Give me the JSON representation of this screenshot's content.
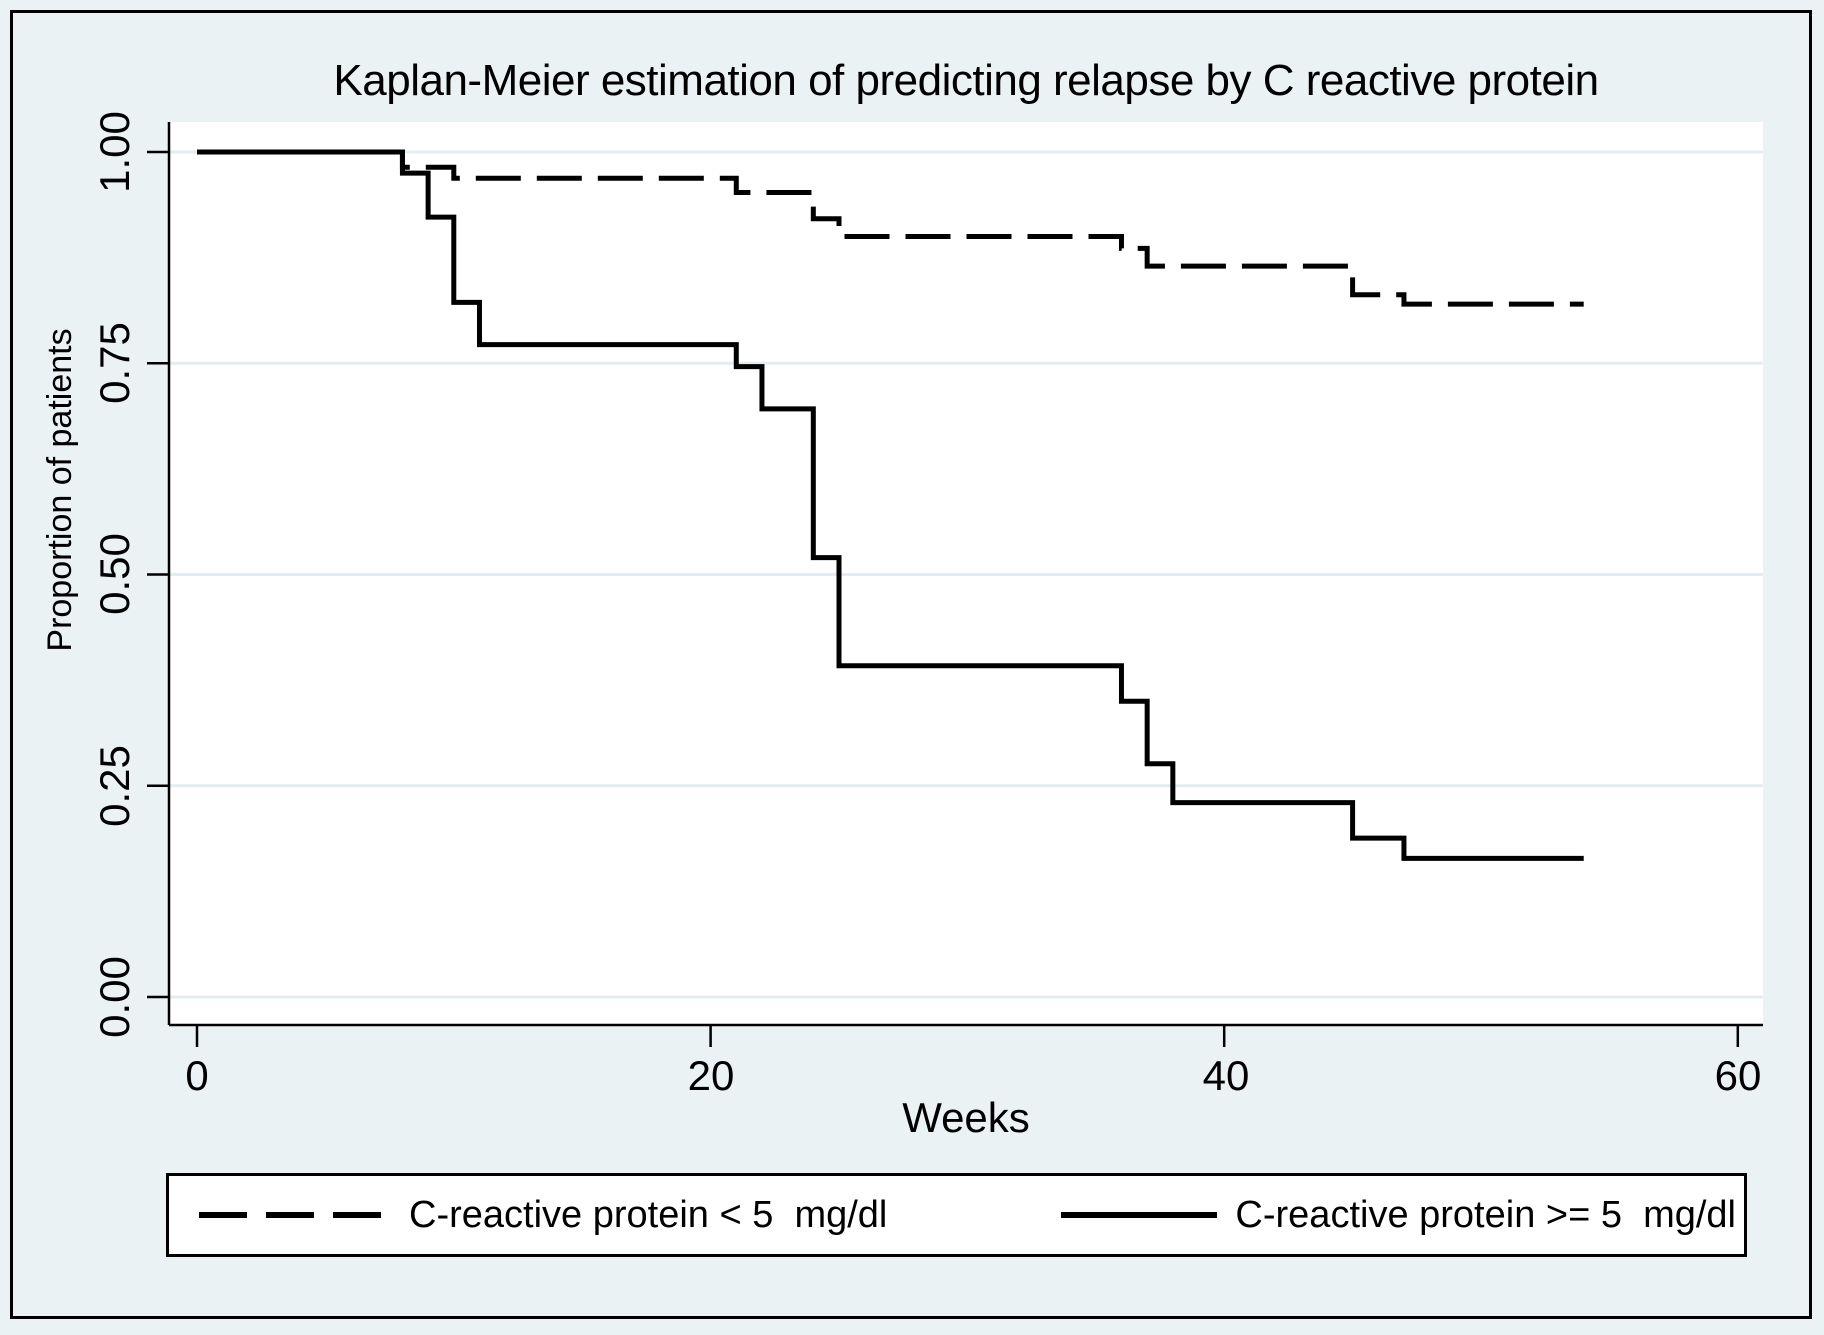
{
  "figure": {
    "background_color": "#eaf2f3",
    "plot_background": "#ffffff",
    "grid_color": "#e3edf1",
    "line_color": "#000000"
  },
  "chart_data": {
    "type": "line",
    "subtype": "kaplan-meier-step",
    "title": "Kaplan-Meier estimation of predicting relapse by C reactive protein",
    "xlabel": "Weeks",
    "ylabel": "Proportion of patients",
    "xlim": [
      0,
      61
    ],
    "ylim": [
      0,
      1.04
    ],
    "grid": "horizontal-only",
    "legend_position": "bottom",
    "x_axis": {
      "label": "Weeks",
      "ticks": [
        {
          "label": "0",
          "value": 0
        },
        {
          "label": "20",
          "value": 20
        },
        {
          "label": "40",
          "value": 40
        },
        {
          "label": "60",
          "value": 60
        }
      ]
    },
    "y_axis": {
      "label": "Proportion of patients",
      "ticks": [
        {
          "label": "1.00",
          "value": 1.0
        },
        {
          "label": "0.75",
          "value": 0.75
        },
        {
          "label": "0.50",
          "value": 0.5
        },
        {
          "label": "0.25",
          "value": 0.25
        },
        {
          "label": "0.00",
          "value": 0.0
        }
      ]
    },
    "series": [
      {
        "name": "C-reactive protein < 5  mg/dl",
        "style": "dashed",
        "data_name": "series-crp-lt5-line",
        "start_week": 0,
        "start_value": 1.0,
        "steps": [
          [
            8,
            0.982
          ],
          [
            10,
            0.969
          ],
          [
            21,
            0.952
          ],
          [
            24,
            0.921
          ],
          [
            25,
            0.9
          ],
          [
            36,
            0.886
          ],
          [
            37,
            0.865
          ],
          [
            45,
            0.831
          ],
          [
            47,
            0.82
          ]
        ],
        "end_week": 54
      },
      {
        "name": "C-reactive protein >= 5  mg/dl",
        "style": "solid",
        "data_name": "series-crp-ge5-line",
        "start_week": 0,
        "start_value": 1.0,
        "steps": [
          [
            8,
            0.975
          ],
          [
            9,
            0.923
          ],
          [
            10,
            0.822
          ],
          [
            11,
            0.772
          ],
          [
            21,
            0.746
          ],
          [
            22,
            0.696
          ],
          [
            24,
            0.52
          ],
          [
            25,
            0.392
          ],
          [
            36,
            0.35
          ],
          [
            37,
            0.276
          ],
          [
            38,
            0.23
          ],
          [
            45,
            0.188
          ],
          [
            47,
            0.164
          ]
        ],
        "end_week": 54
      }
    ]
  },
  "legend": {
    "items": [
      {
        "label": "C-reactive protein < 5  mg/dl",
        "line_style": "dashed"
      },
      {
        "label": "C-reactive protein >= 5  mg/dl",
        "line_style": "solid"
      }
    ]
  }
}
